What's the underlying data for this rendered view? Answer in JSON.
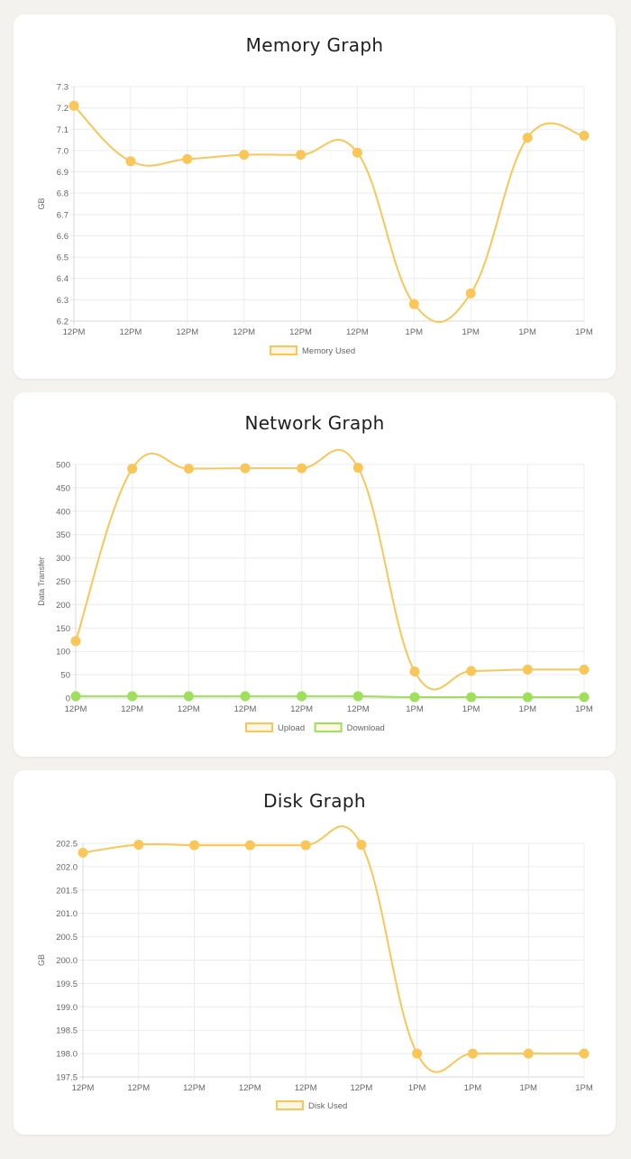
{
  "charts": [
    {
      "id": "memory",
      "title": "Memory Graph",
      "chart_data": {
        "type": "line",
        "title": "Memory Graph",
        "xlabel": "",
        "ylabel": "GB",
        "categories": [
          "12PM",
          "12PM",
          "12PM",
          "12PM",
          "12PM",
          "12PM",
          "1PM",
          "1PM",
          "1PM",
          "1PM"
        ],
        "ylim": [
          6.2,
          7.3
        ],
        "yticks": [
          "7.3",
          "7.2",
          "7.1",
          "7.0",
          "6.9",
          "6.8",
          "6.7",
          "6.6",
          "6.5",
          "6.4",
          "6.3",
          "6.2"
        ],
        "grid": true,
        "legend_position": "bottom",
        "series": [
          {
            "name": "Memory Used",
            "color": "#fbc658",
            "values": [
              7.21,
              6.95,
              6.96,
              6.98,
              6.98,
              6.99,
              6.28,
              6.33,
              7.06,
              7.07
            ]
          }
        ]
      }
    },
    {
      "id": "network",
      "title": "Network Graph",
      "chart_data": {
        "type": "line",
        "title": "Network Graph",
        "xlabel": "",
        "ylabel": "Data Transfer",
        "categories": [
          "12PM",
          "12PM",
          "12PM",
          "12PM",
          "12PM",
          "12PM",
          "1PM",
          "1PM",
          "1PM",
          "1PM"
        ],
        "ylim": [
          0,
          500
        ],
        "yticks": [
          "500",
          "450",
          "400",
          "350",
          "300",
          "250",
          "200",
          "150",
          "100",
          "50",
          "0"
        ],
        "grid": true,
        "legend_position": "bottom",
        "series": [
          {
            "name": "Upload",
            "color": "#fbc658",
            "values": [
              122,
              491,
              491,
              492,
              492,
              493,
              57,
              58,
              61,
              61
            ]
          },
          {
            "name": "Download",
            "color": "#9ee05a",
            "values": [
              4,
              4,
              4,
              4,
              4,
              4,
              2,
              2,
              2,
              2
            ]
          }
        ]
      }
    },
    {
      "id": "disk",
      "title": "Disk Graph",
      "chart_data": {
        "type": "line",
        "title": "Disk Graph",
        "xlabel": "",
        "ylabel": "GB",
        "categories": [
          "12PM",
          "12PM",
          "12PM",
          "12PM",
          "12PM",
          "12PM",
          "1PM",
          "1PM",
          "1PM",
          "1PM"
        ],
        "ylim": [
          197.5,
          202.5
        ],
        "yticks": [
          "202.5",
          "202.0",
          "201.5",
          "201.0",
          "200.5",
          "200.0",
          "199.5",
          "199.0",
          "198.5",
          "198.0",
          "197.5"
        ],
        "grid": true,
        "legend_position": "bottom",
        "series": [
          {
            "name": "Disk Used",
            "color": "#fbc658",
            "values": [
              202.3,
              202.47,
              202.46,
              202.46,
              202.46,
              202.47,
              198.0,
              198.0,
              198.0,
              198.0
            ]
          }
        ]
      }
    }
  ]
}
